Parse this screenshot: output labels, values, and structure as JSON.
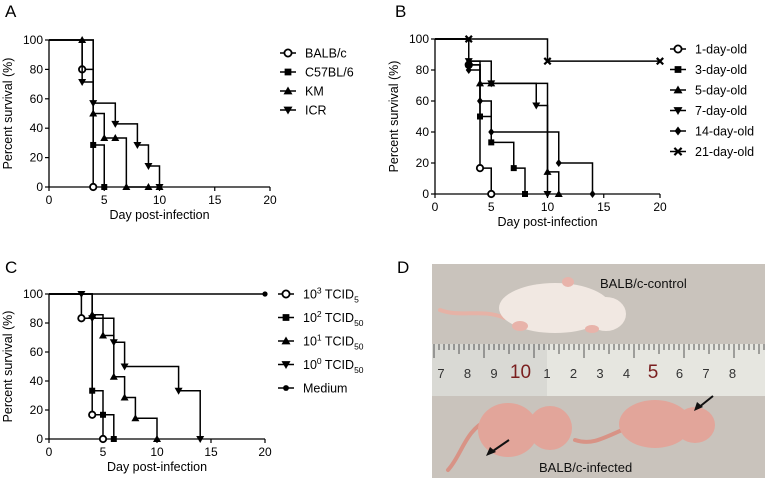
{
  "panels": {
    "A": "A",
    "B": "B",
    "C": "C",
    "D": "D"
  },
  "chart_data": [
    {
      "panel": "A",
      "type": "line",
      "subtype": "kaplan-meier",
      "xlabel": "Day post-infection",
      "ylabel": "Percent survival (%)",
      "xlim": [
        0,
        20
      ],
      "ylim": [
        0,
        100
      ],
      "xticks": [
        0,
        5,
        10,
        15,
        20
      ],
      "yticks": [
        0,
        20,
        40,
        60,
        80,
        100
      ],
      "series": [
        {
          "name": "BALB/c",
          "marker": "circle",
          "x": [
            0,
            3,
            4
          ],
          "y": [
            100,
            80,
            0
          ]
        },
        {
          "name": "C57BL/6",
          "marker": "square",
          "x": [
            0,
            4,
            5
          ],
          "y": [
            100,
            28.6,
            0
          ]
        },
        {
          "name": "KM",
          "marker": "triangle-up",
          "x": [
            0,
            3,
            4,
            5,
            6,
            7,
            9,
            10
          ],
          "y": [
            100,
            100,
            50,
            33.3,
            33.3,
            0,
            0,
            0
          ]
        },
        {
          "name": "ICR",
          "marker": "triangle-down",
          "x": [
            0,
            3,
            4,
            6,
            8,
            9,
            10
          ],
          "y": [
            100,
            71.4,
            57.1,
            42.9,
            28.6,
            14.3,
            0
          ]
        }
      ]
    },
    {
      "panel": "B",
      "type": "line",
      "subtype": "kaplan-meier",
      "xlabel": "Day post-infection",
      "ylabel": "Percent survival (%)",
      "xlim": [
        0,
        20
      ],
      "ylim": [
        0,
        100
      ],
      "xticks": [
        0,
        5,
        10,
        15,
        20
      ],
      "yticks": [
        0,
        20,
        40,
        60,
        80,
        100
      ],
      "series": [
        {
          "name": "1-day-old",
          "marker": "circle",
          "x": [
            0,
            3,
            4,
            5
          ],
          "y": [
            100,
            83.3,
            16.7,
            0
          ]
        },
        {
          "name": "3-day-old",
          "marker": "square",
          "x": [
            0,
            3,
            4,
            5,
            7,
            8
          ],
          "y": [
            100,
            83.3,
            50,
            33.3,
            16.7,
            0
          ]
        },
        {
          "name": "5-day-old",
          "marker": "triangle-up",
          "x": [
            0,
            3,
            4,
            5,
            10,
            11
          ],
          "y": [
            100,
            85.7,
            71.4,
            71.4,
            14.3,
            0
          ]
        },
        {
          "name": "7-day-old",
          "marker": "triangle-down",
          "x": [
            0,
            3,
            5,
            9,
            10
          ],
          "y": [
            100,
            85.7,
            71.4,
            57.1,
            0
          ]
        },
        {
          "name": "14-day-old",
          "marker": "diamond",
          "x": [
            0,
            3,
            4,
            5,
            11,
            14
          ],
          "y": [
            100,
            80,
            60,
            40,
            20,
            0
          ]
        },
        {
          "name": "21-day-old",
          "marker": "x",
          "x": [
            0,
            3,
            10,
            20
          ],
          "y": [
            100,
            100,
            85.7,
            85.7
          ]
        }
      ]
    },
    {
      "panel": "C",
      "type": "line",
      "subtype": "kaplan-meier",
      "xlabel": "Day post-infection",
      "ylabel": "Percent survival (%)",
      "xlim": [
        0,
        20
      ],
      "ylim": [
        0,
        100
      ],
      "xticks": [
        0,
        5,
        10,
        15,
        20
      ],
      "yticks": [
        0,
        20,
        40,
        60,
        80,
        100
      ],
      "legend_labels": [
        {
          "base": "10",
          "sup": "3",
          "rest": " TCID",
          "sub": "5"
        },
        {
          "base": "10",
          "sup": "2",
          "rest": " TCID",
          "sub": "50"
        },
        {
          "base": "10",
          "sup": "1",
          "rest": " TCID",
          "sub": "50"
        },
        {
          "base": "10",
          "sup": "0",
          "rest": " TCID",
          "sub": "50"
        },
        {
          "base": "Medium",
          "sup": "",
          "rest": "",
          "sub": ""
        }
      ],
      "series": [
        {
          "name": "10^3 TCID5",
          "marker": "circle",
          "x": [
            0,
            3,
            4,
            5
          ],
          "y": [
            100,
            83.3,
            16.7,
            0
          ]
        },
        {
          "name": "10^2 TCID50",
          "marker": "square",
          "x": [
            0,
            4,
            5,
            6
          ],
          "y": [
            100,
            33.3,
            16.7,
            0
          ]
        },
        {
          "name": "10^1 TCID50",
          "marker": "triangle-up",
          "x": [
            0,
            4,
            5,
            6,
            7,
            8,
            10
          ],
          "y": [
            100,
            85.7,
            71.4,
            42.9,
            28.6,
            14.3,
            0
          ]
        },
        {
          "name": "10^0 TCID50",
          "marker": "triangle-down",
          "x": [
            0,
            3,
            4,
            6,
            7,
            12,
            14
          ],
          "y": [
            100,
            100,
            83.3,
            66.7,
            50,
            33.3,
            0
          ]
        },
        {
          "name": "Medium",
          "marker": "dot",
          "x": [
            0,
            20
          ],
          "y": [
            100,
            100
          ]
        }
      ]
    }
  ],
  "photo": {
    "caption_top": "BALB/c-control",
    "caption_bottom": "BALB/c-infected",
    "ruler_numbers": [
      "7",
      "8",
      "9",
      "10",
      "1",
      "2",
      "3",
      "4",
      "5",
      "6",
      "7",
      "8"
    ],
    "colors": {
      "background": "#c9c3bc",
      "ruler": "#d9d9d4",
      "mouse_control": "#f1e8e2",
      "mouse_infected": "#e2a59a",
      "arrow": "#111111"
    }
  }
}
